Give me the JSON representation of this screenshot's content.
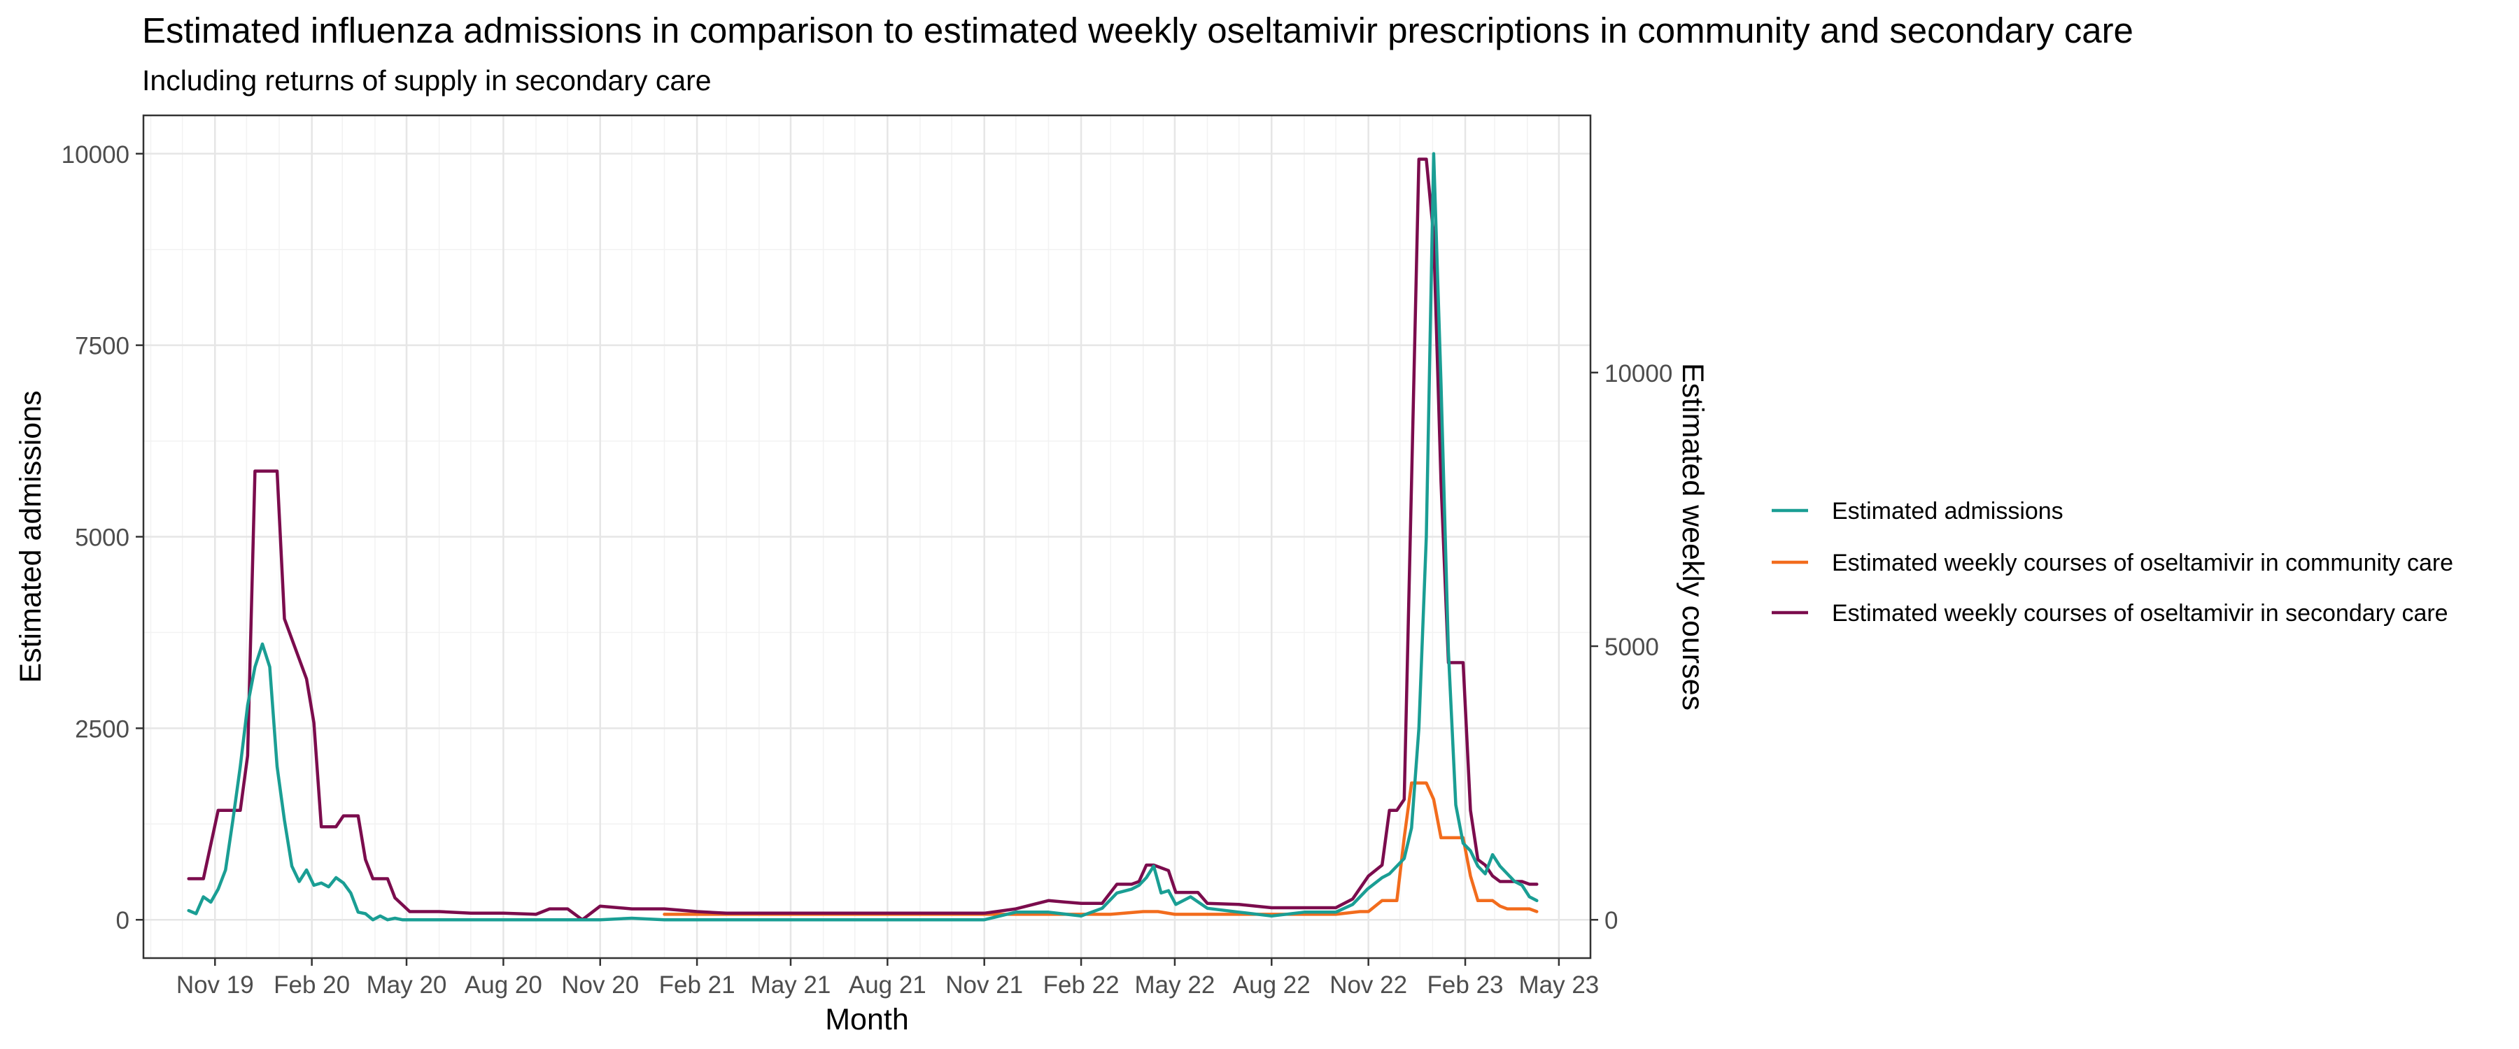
{
  "chart_data": {
    "type": "line",
    "title": "Estimated influenza admissions in comparison to estimated weekly oseltamivir prescriptions in community and secondary care",
    "subtitle": "Including returns of supply in secondary care",
    "xlabel": "Month",
    "ylabel": "Estimated admissions",
    "y2label": "Estimated weekly courses",
    "x_ticks": [
      "Nov 19",
      "Feb 20",
      "May 20",
      "Aug 20",
      "Nov 20",
      "Feb 21",
      "May 21",
      "Aug 21",
      "Nov 21",
      "Feb 22",
      "May 22",
      "Aug 22",
      "Nov 22",
      "Feb 23",
      "May 23"
    ],
    "ylim": [
      -500,
      10500
    ],
    "y_ticks": [
      0,
      2500,
      5000,
      7500,
      10000
    ],
    "y2lim": [
      -700,
      14700
    ],
    "y2_ticks": [
      0,
      5000,
      10000
    ],
    "grid": true,
    "legend_position": "right",
    "series": [
      {
        "name": "Estimated admissions",
        "axis": "left",
        "color": "#1a9e94",
        "x": [
          "2019-10-07",
          "2019-10-14",
          "2019-10-21",
          "2019-10-28",
          "2019-11-04",
          "2019-11-11",
          "2019-11-18",
          "2019-11-25",
          "2019-12-02",
          "2019-12-09",
          "2019-12-16",
          "2019-12-23",
          "2019-12-30",
          "2020-01-06",
          "2020-01-13",
          "2020-01-20",
          "2020-01-27",
          "2020-02-03",
          "2020-02-10",
          "2020-02-17",
          "2020-02-24",
          "2020-03-02",
          "2020-03-09",
          "2020-03-16",
          "2020-03-23",
          "2020-03-30",
          "2020-04-06",
          "2020-04-13",
          "2020-04-20",
          "2020-04-27",
          "2020-05-11",
          "2020-06-01",
          "2020-07-01",
          "2020-08-01",
          "2020-09-01",
          "2020-10-01",
          "2020-11-01",
          "2020-12-01",
          "2021-01-01",
          "2021-02-01",
          "2021-03-01",
          "2021-04-01",
          "2021-05-01",
          "2021-06-01",
          "2021-07-01",
          "2021-08-01",
          "2021-09-01",
          "2021-10-01",
          "2021-11-01",
          "2021-12-01",
          "2022-01-01",
          "2022-02-01",
          "2022-02-21",
          "2022-03-07",
          "2022-03-21",
          "2022-03-28",
          "2022-04-04",
          "2022-04-11",
          "2022-04-18",
          "2022-04-25",
          "2022-05-02",
          "2022-05-16",
          "2022-06-01",
          "2022-07-01",
          "2022-08-01",
          "2022-09-01",
          "2022-10-01",
          "2022-10-17",
          "2022-10-31",
          "2022-11-14",
          "2022-11-21",
          "2022-11-28",
          "2022-12-05",
          "2022-12-12",
          "2022-12-19",
          "2022-12-26",
          "2023-01-02",
          "2023-01-09",
          "2023-01-16",
          "2023-01-23",
          "2023-01-30",
          "2023-02-06",
          "2023-02-13",
          "2023-02-20",
          "2023-02-27",
          "2023-03-06",
          "2023-03-13",
          "2023-03-20",
          "2023-03-27",
          "2023-04-03",
          "2023-04-10"
        ],
        "values": [
          120,
          80,
          300,
          230,
          400,
          650,
          1300,
          2000,
          2800,
          3300,
          3600,
          3300,
          2000,
          1300,
          700,
          500,
          650,
          450,
          480,
          430,
          550,
          480,
          350,
          100,
          80,
          0,
          50,
          0,
          20,
          0,
          0,
          0,
          0,
          0,
          0,
          0,
          0,
          20,
          0,
          0,
          0,
          0,
          0,
          0,
          0,
          0,
          0,
          0,
          0,
          100,
          100,
          50,
          150,
          350,
          400,
          450,
          550,
          700,
          350,
          380,
          200,
          300,
          150,
          100,
          50,
          100,
          100,
          200,
          400,
          550,
          600,
          700,
          800,
          1200,
          2500,
          5000,
          10000,
          7000,
          3500,
          1500,
          1000,
          900,
          700,
          600,
          850,
          700,
          600,
          500,
          450,
          300,
          250
        ]
      },
      {
        "name": "Estimated weekly courses of oseltamivir in community care",
        "axis": "right",
        "color": "#f26c1d",
        "x": [
          "2021-01-01",
          "2021-02-01",
          "2021-03-01",
          "2021-04-01",
          "2021-05-01",
          "2021-06-01",
          "2021-07-01",
          "2021-08-01",
          "2021-09-01",
          "2021-10-01",
          "2021-11-01",
          "2021-12-01",
          "2022-01-01",
          "2022-02-01",
          "2022-03-01",
          "2022-04-01",
          "2022-04-15",
          "2022-05-01",
          "2022-06-01",
          "2022-07-01",
          "2022-08-01",
          "2022-09-01",
          "2022-10-01",
          "2022-10-24",
          "2022-11-01",
          "2022-11-14",
          "2022-11-21",
          "2022-11-28",
          "2022-12-05",
          "2022-12-12",
          "2022-12-19",
          "2022-12-26",
          "2023-01-02",
          "2023-01-09",
          "2023-01-16",
          "2023-01-23",
          "2023-01-30",
          "2023-02-06",
          "2023-02-13",
          "2023-02-20",
          "2023-02-27",
          "2023-03-06",
          "2023-03-13",
          "2023-03-20",
          "2023-03-27",
          "2023-04-03",
          "2023-04-10"
        ],
        "values": [
          100,
          100,
          100,
          100,
          100,
          100,
          100,
          100,
          100,
          100,
          100,
          100,
          100,
          100,
          100,
          150,
          150,
          100,
          100,
          100,
          100,
          100,
          100,
          150,
          150,
          350,
          350,
          350,
          1500,
          2500,
          2500,
          2500,
          2200,
          1500,
          1500,
          1500,
          1500,
          800,
          350,
          350,
          350,
          250,
          200,
          200,
          200,
          200,
          150
        ]
      },
      {
        "name": "Estimated weekly courses of oseltamivir in secondary care",
        "axis": "right",
        "color": "#7b0c4d",
        "x": [
          "2019-10-07",
          "2019-10-21",
          "2019-11-04",
          "2019-11-25",
          "2019-12-02",
          "2019-12-09",
          "2019-12-30",
          "2020-01-06",
          "2020-01-27",
          "2020-02-03",
          "2020-02-10",
          "2020-02-24",
          "2020-03-02",
          "2020-03-16",
          "2020-03-23",
          "2020-03-30",
          "2020-04-13",
          "2020-04-20",
          "2020-05-04",
          "2020-06-01",
          "2020-07-01",
          "2020-08-01",
          "2020-09-01",
          "2020-09-14",
          "2020-10-01",
          "2020-10-15",
          "2020-11-01",
          "2020-12-01",
          "2021-01-01",
          "2021-02-01",
          "2021-03-01",
          "2021-06-01",
          "2021-09-01",
          "2021-11-01",
          "2021-12-01",
          "2022-01-01",
          "2022-02-01",
          "2022-02-21",
          "2022-03-07",
          "2022-03-21",
          "2022-03-28",
          "2022-04-04",
          "2022-04-11",
          "2022-04-25",
          "2022-05-02",
          "2022-05-23",
          "2022-06-01",
          "2022-07-01",
          "2022-08-01",
          "2022-09-01",
          "2022-10-01",
          "2022-10-17",
          "2022-11-01",
          "2022-11-14",
          "2022-11-21",
          "2022-11-28",
          "2022-12-05",
          "2022-12-12",
          "2022-12-19",
          "2022-12-26",
          "2023-01-02",
          "2023-01-09",
          "2023-01-16",
          "2023-01-23",
          "2023-01-30",
          "2023-02-06",
          "2023-02-13",
          "2023-02-20",
          "2023-02-27",
          "2023-03-06",
          "2023-03-13",
          "2023-03-20",
          "2023-03-27",
          "2023-04-03",
          "2023-04-10"
        ],
        "values": [
          750,
          750,
          2000,
          2000,
          3000,
          8200,
          8200,
          5500,
          4400,
          3600,
          1700,
          1700,
          1900,
          1900,
          1100,
          750,
          750,
          400,
          150,
          150,
          120,
          120,
          100,
          200,
          200,
          0,
          250,
          200,
          200,
          150,
          120,
          120,
          120,
          120,
          200,
          350,
          300,
          300,
          650,
          650,
          700,
          1000,
          1000,
          900,
          500,
          500,
          300,
          280,
          220,
          220,
          220,
          380,
          800,
          1000,
          2000,
          2000,
          2200,
          8000,
          13900,
          13900,
          12500,
          8000,
          4700,
          4700,
          4700,
          2000,
          1100,
          1000,
          800,
          700,
          700,
          700,
          700,
          650,
          650
        ]
      }
    ]
  }
}
